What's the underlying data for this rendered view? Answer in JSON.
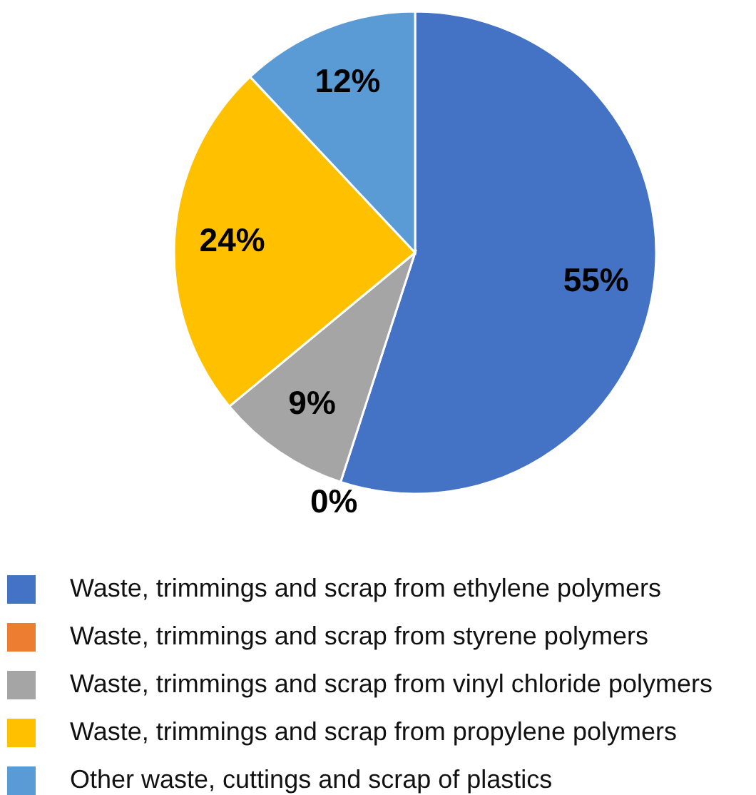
{
  "chart_data": {
    "type": "pie",
    "categories": [
      "Waste, trimmings and scrap from ethylene polymers",
      "Waste, trimmings and scrap from styrene polymers",
      "Waste, trimmings and scrap from vinyl chloride polymers",
      "Waste, trimmings and scrap from propylene polymers",
      "Other waste, cuttings and scrap of plastics"
    ],
    "values": [
      55,
      0,
      9,
      24,
      12
    ],
    "value_labels": [
      "55%",
      "0%",
      "9%",
      "24%",
      "12%"
    ],
    "colors": [
      "#4472c4",
      "#ed7d31",
      "#a5a5a5",
      "#ffc000",
      "#5b9bd5"
    ],
    "legend": "bottom"
  }
}
